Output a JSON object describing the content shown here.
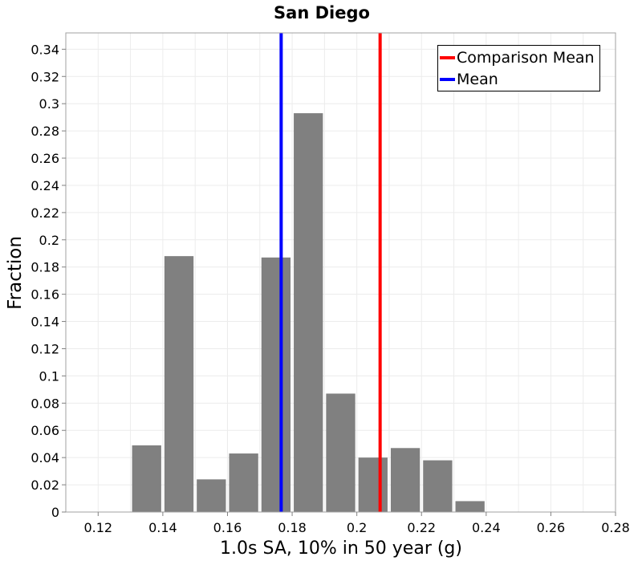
{
  "chart_data": {
    "type": "bar",
    "title": "San Diego",
    "xlabel": "1.0s SA, 10% in 50 year (g)",
    "ylabel": "Fraction",
    "xlim": [
      0.11,
      0.28
    ],
    "ylim": [
      0,
      0.352
    ],
    "bin_width": 0.01,
    "x_ticks": [
      0.12,
      0.14,
      0.16,
      0.18,
      0.2,
      0.22,
      0.24,
      0.26,
      0.28
    ],
    "x_tick_labels": [
      "0.12",
      "0.14",
      "0.16",
      "0.18",
      "0.2",
      "0.22",
      "0.24",
      "0.26",
      "0.28"
    ],
    "y_ticks": [
      0,
      0.02,
      0.04,
      0.06,
      0.08,
      0.1,
      0.12,
      0.14,
      0.16,
      0.18,
      0.2,
      0.22,
      0.24,
      0.26,
      0.28,
      0.3,
      0.32,
      0.34
    ],
    "y_tick_labels": [
      "0",
      "0.02",
      "0.04",
      "0.06",
      "0.08",
      "0.1",
      "0.12",
      "0.14",
      "0.16",
      "0.18",
      "0.2",
      "0.22",
      "0.24",
      "0.26",
      "0.28",
      "0.3",
      "0.32",
      "0.34"
    ],
    "bins": [
      {
        "center": 0.135,
        "value": 0.049
      },
      {
        "center": 0.145,
        "value": 0.188
      },
      {
        "center": 0.155,
        "value": 0.024
      },
      {
        "center": 0.165,
        "value": 0.043
      },
      {
        "center": 0.175,
        "value": 0.187
      },
      {
        "center": 0.185,
        "value": 0.293
      },
      {
        "center": 0.195,
        "value": 0.087
      },
      {
        "center": 0.205,
        "value": 0.04
      },
      {
        "center": 0.215,
        "value": 0.047
      },
      {
        "center": 0.225,
        "value": 0.038
      },
      {
        "center": 0.235,
        "value": 0.008
      }
    ],
    "bar_color": "#808080",
    "grid": true,
    "vlines": [
      {
        "name": "Comparison Mean",
        "x": 0.2072,
        "color": "#ff0000"
      },
      {
        "name": "Mean",
        "x": 0.1766,
        "color": "#0000ff"
      }
    ],
    "legend": {
      "position": "top-right",
      "entries": [
        {
          "label": "Comparison Mean",
          "color": "#ff0000"
        },
        {
          "label": "Mean",
          "color": "#0000ff"
        }
      ]
    }
  }
}
